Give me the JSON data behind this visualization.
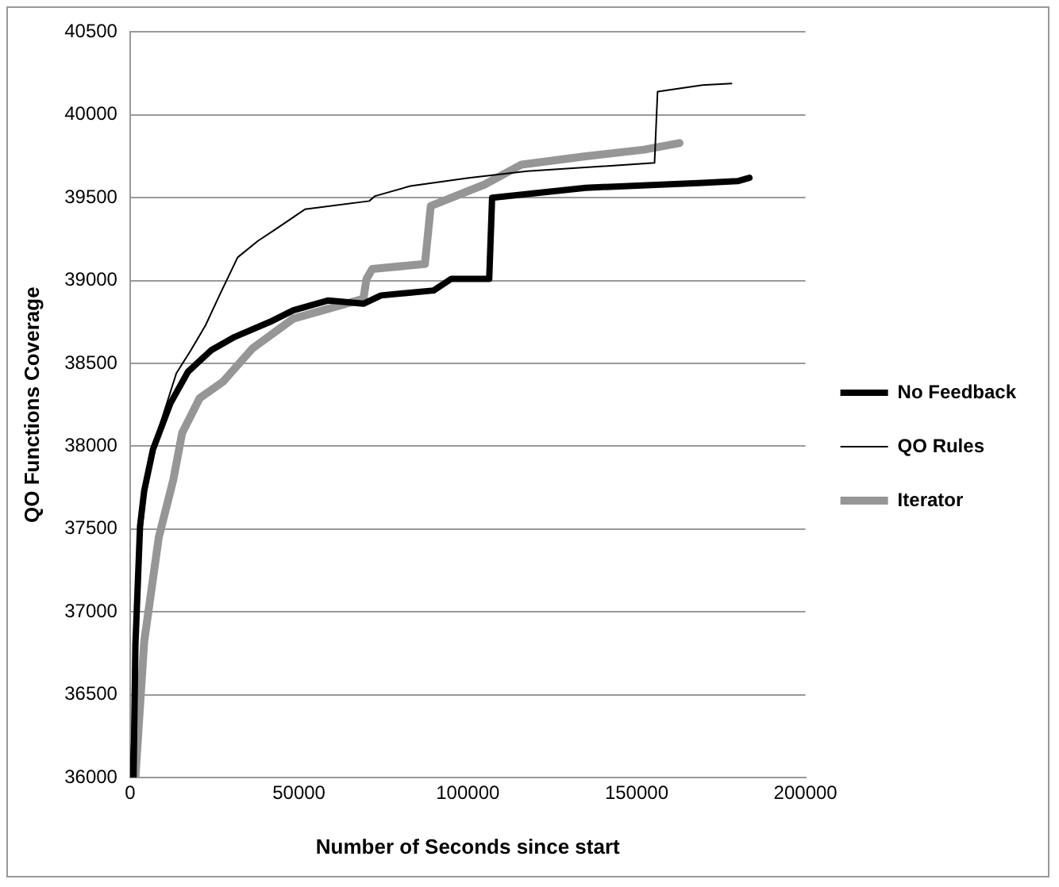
{
  "chart_data": {
    "type": "line",
    "xlabel": "Number of Seconds since start",
    "ylabel": "QO Functions Coverage",
    "xlim": [
      0,
      200000
    ],
    "xticks": [
      0,
      50000,
      100000,
      150000,
      200000
    ],
    "ylim": [
      36000,
      40500
    ],
    "yticks": [
      36000,
      36500,
      37000,
      37500,
      38000,
      38500,
      39000,
      39500,
      40000,
      40500
    ],
    "grid": "y",
    "legend": "right",
    "marker": "none",
    "line_style": "solid",
    "series": [
      {
        "name": "No Feedback",
        "color": "#000000",
        "x": [
          1000,
          1560,
          2940,
          4160,
          6750,
          11950,
          17140,
          24070,
          30990,
          41380,
          48310,
          58700,
          69090,
          74290,
          89880,
          95080,
          106340,
          107200,
          134900,
          169500,
          179900,
          183400
        ],
        "values": [
          36000,
          36800,
          37520,
          37730,
          37980,
          38260,
          38450,
          38580,
          38660,
          38750,
          38820,
          38880,
          38860,
          38910,
          38940,
          39010,
          39010,
          39500,
          39560,
          39590,
          39600,
          39620
        ]
      },
      {
        "name": "QO Rules",
        "color": "#000000",
        "x": [
          0,
          3000,
          5500,
          7600,
          13680,
          18010,
          22330,
          26660,
          31840,
          37900,
          43100,
          51760,
          70810,
          72540,
          82930,
          100250,
          117560,
          155300,
          156200,
          169500,
          178100
        ],
        "values": [
          36000,
          37400,
          37900,
          38050,
          38440,
          38580,
          38730,
          38920,
          39140,
          39240,
          39310,
          39430,
          39480,
          39510,
          39570,
          39620,
          39660,
          39710,
          40140,
          40180,
          40190
        ]
      },
      {
        "name": "Iterator",
        "color": "#969696",
        "x": [
          1560,
          4160,
          8480,
          12810,
          15400,
          20600,
          27540,
          36200,
          48310,
          69090,
          70000,
          71710,
          87300,
          89030,
          105000,
          115940,
          134900,
          152200,
          162700
        ],
        "values": [
          36000,
          36820,
          37450,
          37800,
          38080,
          38290,
          38390,
          38590,
          38770,
          38890,
          39010,
          39070,
          39100,
          39450,
          39580,
          39700,
          39750,
          39790,
          39830
        ]
      }
    ]
  }
}
